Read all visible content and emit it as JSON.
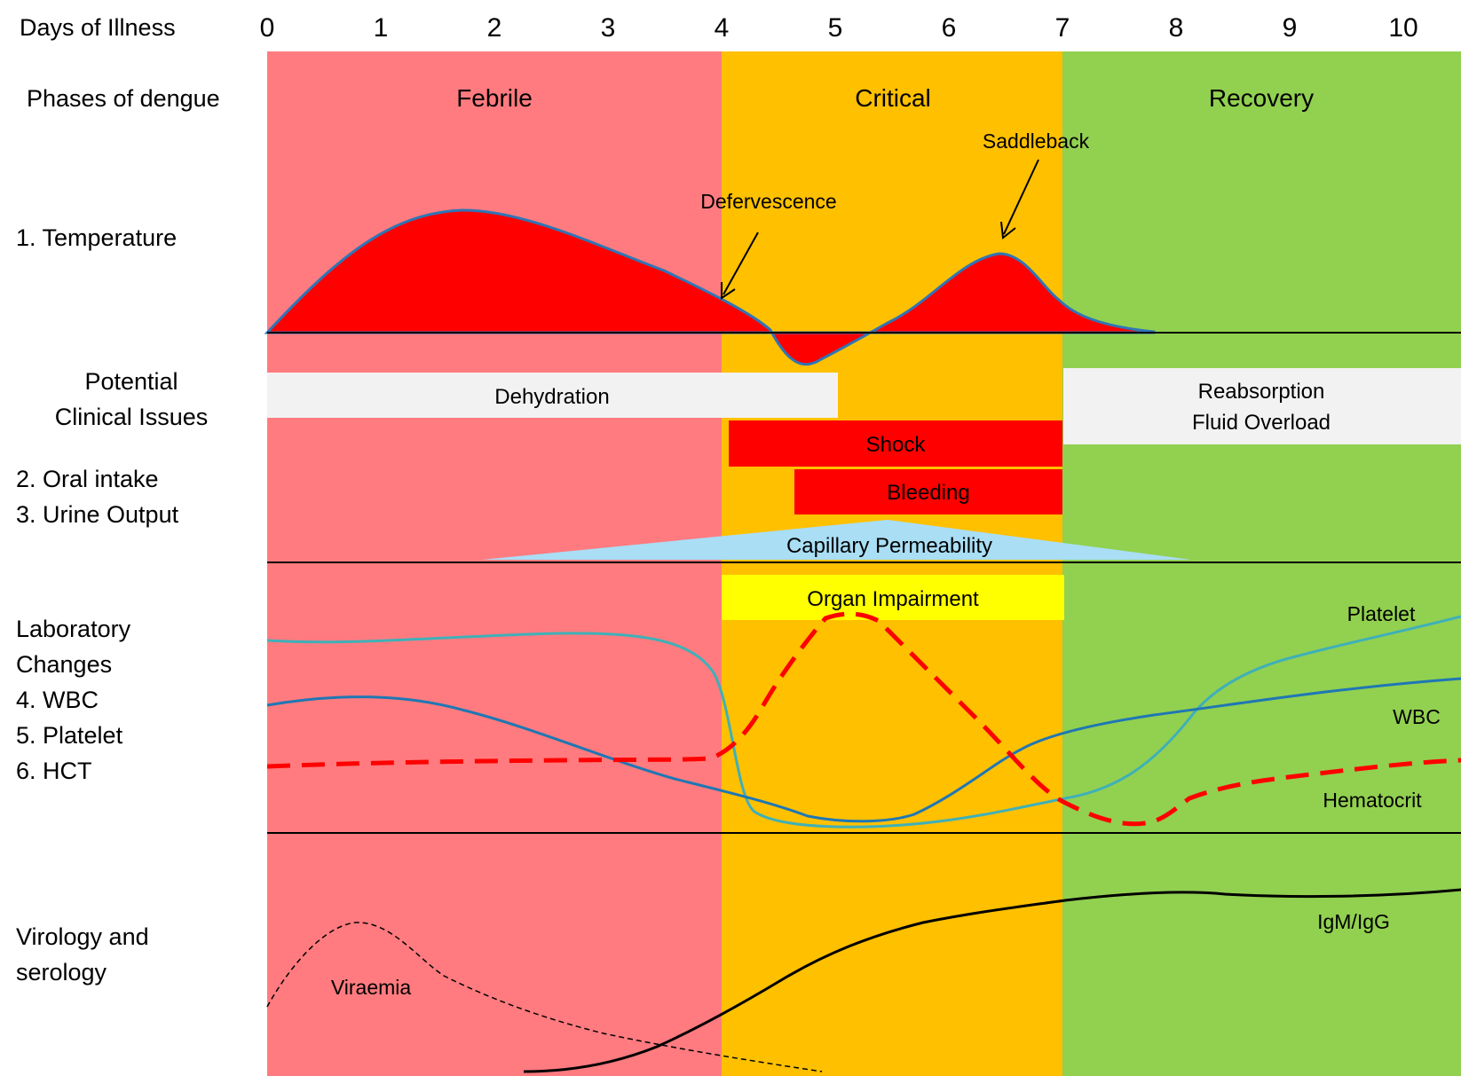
{
  "header": {
    "days_label": "Days of Illness",
    "days": [
      "0",
      "1",
      "2",
      "3",
      "4",
      "5",
      "6",
      "7",
      "8",
      "9",
      "10"
    ]
  },
  "phases": {
    "row_label": "Phases of dengue",
    "items": [
      {
        "label": "Febrile",
        "color": "#ff7b7f"
      },
      {
        "label": "Critical",
        "color": "#ffc000"
      },
      {
        "label": "Recovery",
        "color": "#92d050"
      }
    ]
  },
  "row_labels": {
    "temperature": "1. Temperature",
    "clinical_line1": "Potential",
    "clinical_line2": "Clinical Issues",
    "oral_intake": "2. Oral intake",
    "urine_output": "3. Urine Output",
    "lab_line1": "Laboratory",
    "lab_line2": "Changes",
    "wbc": "4. WBC",
    "platelet": "5. Platelet",
    "hct": "6. HCT",
    "virology_line1": "Virology and",
    "virology_line2": "serology"
  },
  "temperature": {
    "defervescence": "Defervescence",
    "saddleback": "Saddleback",
    "fill_color": "#ff0000",
    "outline_color": "#2e75b6"
  },
  "clinical_issues": {
    "dehydration": "Dehydration",
    "reabsorption_line1": "Reabsorption",
    "reabsorption_line2": "Fluid Overload",
    "shock": "Shock",
    "bleeding": "Bleeding",
    "capillary": "Capillary Permeability",
    "organ": "Organ Impairment",
    "bar_colors": {
      "light": "#f2f2f2",
      "red": "#ff0000",
      "blue": "#a9def5",
      "yellow": "#ffff00"
    }
  },
  "lab_lines": {
    "platelet": "Platelet",
    "wbc": "WBC",
    "hematocrit": "Hematocrit",
    "platelet_color": "#3fb0b8",
    "wbc_color": "#1f77b4",
    "hematocrit_color": "#ff0000"
  },
  "virology": {
    "viraemia": "Viraemia",
    "igm": "IgM/IgG"
  }
}
